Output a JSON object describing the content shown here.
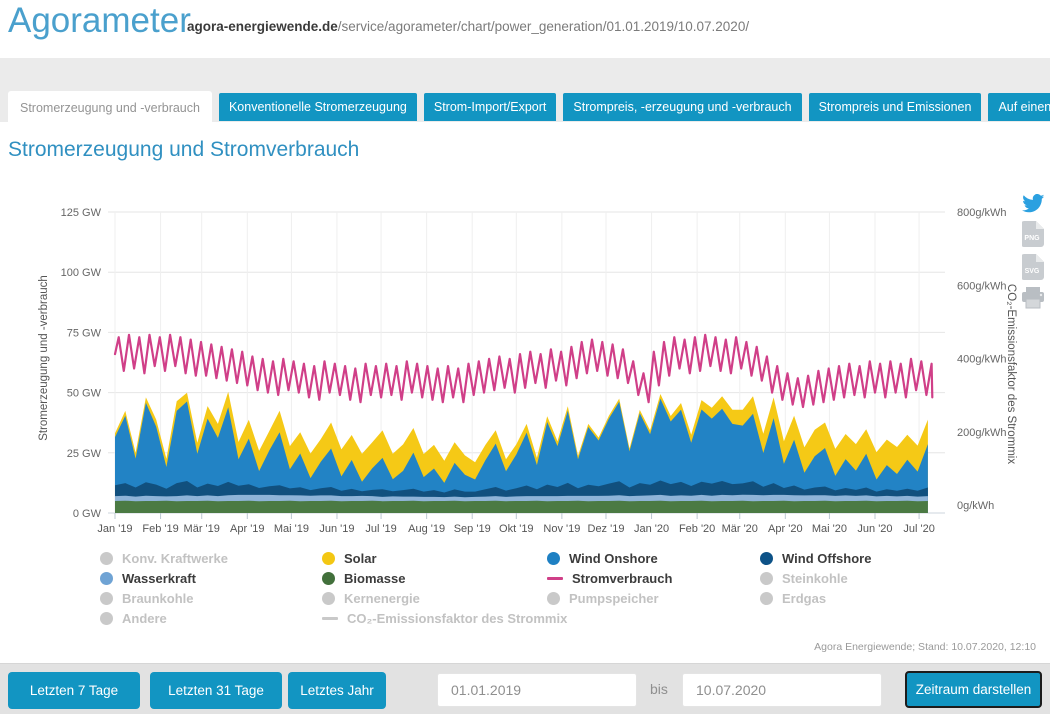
{
  "header": {
    "app_title": "Agorameter",
    "breadcrumb_domain": "agora-energiewende.de",
    "breadcrumb_path": "/service/agorameter/chart/power_generation/01.01.2019/10.07.2020/"
  },
  "tabs": [
    {
      "label": "Stromerzeugung und -verbrauch",
      "active": true
    },
    {
      "label": "Konventionelle Stromerzeugung",
      "active": false
    },
    {
      "label": "Strom-Import/Export",
      "active": false
    },
    {
      "label": "Strompreis, -erzeugung und -verbrauch",
      "active": false
    },
    {
      "label": "Strompreis und Emissionen",
      "active": false
    },
    {
      "label": "Auf einen Blick",
      "active": false
    }
  ],
  "page_title": "Stromerzeugung und Stromverbrauch",
  "share_icons": [
    "twitter-icon",
    "png-download-icon",
    "svg-download-icon",
    "print-icon"
  ],
  "colors": {
    "accent_blue": "#1295c2",
    "heading_blue": "#3090c1",
    "solar": "#f5c916",
    "biomasse": "#4b7a43",
    "wind_onshore": "#2283c5",
    "wind_offshore": "#11507e",
    "wasserkraft": "#8fb4d8",
    "stromverbrauch": "#d03f88",
    "inactive_gray": "#c9c9c9"
  },
  "legend_columns": [
    [
      {
        "label": "Konv. Kraftwerke",
        "swatch": "dot",
        "color": "#c9c9c9",
        "active": false
      },
      {
        "label": "Wasserkraft",
        "swatch": "dot",
        "color": "#6fa3d4",
        "active": true
      },
      {
        "label": "Braunkohle",
        "swatch": "dot",
        "color": "#c9c9c9",
        "active": false
      },
      {
        "label": "Andere",
        "swatch": "dot",
        "color": "#c9c9c9",
        "active": false
      }
    ],
    [
      {
        "label": "Solar",
        "swatch": "dot",
        "color": "#f3c713",
        "active": true
      },
      {
        "label": "Biomasse",
        "swatch": "dot",
        "color": "#42703b",
        "active": true
      },
      {
        "label": "Kernenergie",
        "swatch": "dot",
        "color": "#c9c9c9",
        "active": false
      },
      {
        "label": "CO₂-Emissionsfaktor des Strommix",
        "swatch": "line",
        "color": "#c9c9c9",
        "active": false
      }
    ],
    [
      {
        "label": "Wind Onshore",
        "swatch": "dot",
        "color": "#1e80c3",
        "active": true
      },
      {
        "label": "Stromverbrauch",
        "swatch": "line",
        "color": "#d03f88",
        "active": true
      },
      {
        "label": "Pumpspeicher",
        "swatch": "dot",
        "color": "#c9c9c9",
        "active": false
      }
    ],
    [
      {
        "label": "Wind Offshore",
        "swatch": "dot",
        "color": "#0d5287",
        "active": true
      },
      {
        "label": "Steinkohle",
        "swatch": "dot",
        "color": "#c9c9c9",
        "active": false
      },
      {
        "label": "Erdgas",
        "swatch": "dot",
        "color": "#c9c9c9",
        "active": false
      }
    ]
  ],
  "source_note": "Agora Energiewende; Stand: 10.07.2020, 12:10",
  "bottombar": {
    "range_buttons": [
      "Letzten 7 Tage",
      "Letzten 31 Tage",
      "Letztes Jahr"
    ],
    "date_from": "01.01.2019",
    "separator": "bis",
    "date_to": "10.07.2020",
    "submit_label": "Zeitraum darstellen"
  },
  "chart_data": {
    "type": "area",
    "title": "Stromerzeugung und Stromverbrauch",
    "x_start": "01.01.2019",
    "x_end": "10.07.2020",
    "total_days": 556,
    "sample_interval_days": 7,
    "x_tick_labels": [
      "Jan '19",
      "Feb '19",
      "Mär '19",
      "Apr '19",
      "Mai '19",
      "Jun '19",
      "Jul '19",
      "Aug '19",
      "Sep '19",
      "Okt '19",
      "Nov '19",
      "Dez '19",
      "Jan '20",
      "Feb '20",
      "Mär '20",
      "Apr '20",
      "Mai '20",
      "Jun '20",
      "Jul '20"
    ],
    "x_tick_days": [
      0,
      31,
      59,
      90,
      120,
      151,
      181,
      212,
      243,
      273,
      304,
      334,
      365,
      396,
      425,
      456,
      486,
      517,
      547
    ],
    "y_left": {
      "label": "Stromerzeugung und -verbrauch",
      "unit": "GW",
      "ticks": [
        0,
        25,
        50,
        75,
        100,
        125
      ],
      "max": 130
    },
    "y_right": {
      "label": "CO₂-Emissionsfaktor des Strommix",
      "unit": "g/kWh",
      "ticks": [
        0,
        200,
        400,
        600,
        800
      ],
      "max": 800
    },
    "grid": true,
    "legend_position": "bottom",
    "stacked_series_bottom_to_top": [
      {
        "name": "Biomasse",
        "color": "#4b7a43",
        "weekly_values_gw": [
          5,
          5.1,
          4.9,
          5,
          5,
          5.1,
          4.9,
          5,
          5,
          5.1,
          4.9,
          5,
          5,
          5.1,
          4.9,
          5,
          5,
          5.1,
          4.9,
          5,
          5,
          5.1,
          4.9,
          5,
          5,
          5.1,
          4.9,
          5,
          5,
          5.1,
          4.9,
          5,
          5,
          5.1,
          4.9,
          5,
          5,
          5.1,
          4.9,
          5,
          5,
          5.1,
          4.9,
          5,
          5,
          5.1,
          4.9,
          5,
          5,
          5.1,
          4.9,
          5,
          5,
          5.1,
          4.9,
          5,
          5,
          5.1,
          4.9,
          5,
          5,
          5.1,
          4.9,
          5,
          5,
          5.1,
          4.9,
          5,
          5,
          5.1,
          4.9,
          5,
          5,
          5.1,
          4.9,
          5,
          5,
          5.1,
          4.9,
          5
        ]
      },
      {
        "name": "Wasserkraft",
        "color": "#8fb4d8",
        "weekly_values_gw": [
          2,
          2.1,
          1.9,
          2.2,
          2,
          1.8,
          2.1,
          2.3,
          2,
          2.2,
          2.1,
          2.4,
          2.5,
          2.4,
          2.6,
          2.5,
          2.4,
          2.3,
          2.4,
          2.2,
          2.3,
          2.2,
          2.1,
          2,
          2.1,
          1.9,
          1.8,
          1.9,
          1.8,
          1.7,
          1.8,
          1.7,
          1.6,
          1.7,
          1.6,
          1.7,
          1.8,
          1.9,
          1.8,
          1.9,
          2,
          1.9,
          2.1,
          2,
          2.1,
          2,
          2.2,
          2.1,
          2.2,
          2.3,
          2.1,
          2.2,
          2.3,
          2.4,
          2.2,
          2.3,
          2.2,
          2.4,
          2.3,
          2.5,
          2.4,
          2.5,
          2.6,
          2.4,
          2.5,
          2.4,
          2.5,
          2.3,
          2.4,
          2.3,
          2.2,
          2.3,
          2.1,
          2.2,
          2,
          2.1,
          1.9,
          2,
          1.9,
          2
        ]
      },
      {
        "name": "Wind Offshore",
        "color": "#11507e",
        "weekly_values_gw": [
          4.5,
          5.2,
          3.8,
          5.6,
          4.8,
          3.2,
          5.4,
          6,
          3.6,
          4.9,
          4.2,
          5.5,
          3.8,
          4.4,
          2.9,
          3.6,
          4.1,
          2.8,
          3.4,
          2.3,
          3,
          3.5,
          2.2,
          3,
          1.9,
          2.6,
          3.2,
          2.1,
          2.7,
          3.3,
          2.2,
          2.8,
          1.9,
          3,
          2.4,
          2.2,
          3.1,
          3.8,
          2.6,
          3.4,
          4.4,
          2.9,
          4.8,
          3.8,
          5.4,
          3.2,
          4.6,
          4,
          5,
          5.8,
          3.6,
          5.2,
          4.4,
          6,
          4.9,
          5.6,
          4,
          5.5,
          5,
          5.8,
          4.6,
          4.7,
          5.7,
          3.5,
          4.9,
          2.9,
          4,
          2.4,
          3.2,
          3.6,
          2.3,
          3.1,
          2.5,
          3.3,
          2,
          2.8,
          2.3,
          3,
          2.4,
          3.6
        ]
      },
      {
        "name": "Wind Onshore",
        "color": "#2283c5",
        "weekly_values_gw": [
          20,
          28,
          12,
          33,
          24,
          9,
          30,
          33,
          14,
          27,
          20,
          31,
          11,
          19,
          7,
          15,
          22,
          8,
          14,
          5,
          11,
          16,
          6,
          12,
          4,
          9,
          13,
          5,
          8,
          15,
          6,
          9,
          4,
          11,
          7,
          5,
          12,
          18,
          8,
          14,
          22,
          10,
          26,
          17,
          30,
          12,
          24,
          19,
          27,
          33,
          15,
          29,
          21,
          34,
          26,
          30,
          18,
          30,
          27,
          30,
          25,
          24,
          28,
          14,
          27,
          10,
          19,
          7,
          13,
          16,
          6,
          12,
          8,
          14,
          5,
          10,
          7,
          12,
          8,
          18
        ]
      },
      {
        "name": "Solar",
        "color": "#f5c916",
        "weekly_values_gw": [
          1.6,
          2,
          2.4,
          2.2,
          3,
          3.4,
          4,
          3.6,
          4.6,
          5.2,
          5.8,
          6.4,
          7.2,
          7.8,
          8.4,
          8,
          9,
          9.6,
          8.8,
          10.2,
          9.4,
          10.8,
          11.2,
          10.4,
          11.6,
          10.8,
          11.4,
          10.6,
          11,
          10.2,
          9.6,
          9.8,
          9.2,
          8.6,
          8,
          7.2,
          6.4,
          5.6,
          5,
          4.2,
          3.6,
          3,
          2.4,
          2,
          1.8,
          1.5,
          1.3,
          1.2,
          1.2,
          1.3,
          1.2,
          1.4,
          1.6,
          1.9,
          2.3,
          2.8,
          3.3,
          3.9,
          4.5,
          5.2,
          5.9,
          6.6,
          7.3,
          8,
          8.6,
          9.4,
          10,
          10.6,
          11,
          10.6,
          11.2,
          10.4,
          11,
          10.2,
          11.4,
          10.6,
          11.2,
          10.4,
          10.8,
          10.2
        ]
      }
    ],
    "line_series": {
      "name": "Stromverbrauch",
      "color": "#d03f88",
      "weekly_weekday_peak_gw": [
        73,
        74,
        73,
        74,
        73,
        74,
        73,
        72,
        71,
        70,
        69,
        68,
        67,
        65,
        64,
        63,
        64,
        63,
        62,
        61,
        63,
        62,
        61,
        60,
        62,
        61,
        62,
        61,
        63,
        62,
        61,
        60,
        61,
        60,
        62,
        63,
        64,
        65,
        64,
        66,
        67,
        66,
        68,
        67,
        69,
        71,
        72,
        71,
        70,
        68,
        63,
        58,
        67,
        71,
        73,
        72,
        73,
        74,
        73,
        72,
        73,
        71,
        69,
        65,
        61,
        58,
        56,
        57,
        59,
        60,
        61,
        62,
        61,
        63,
        62,
        63,
        62,
        64,
        63,
        62
      ],
      "weekly_weekend_trough_gw": [
        59,
        60,
        58,
        61,
        59,
        61,
        58,
        57,
        57,
        56,
        55,
        54,
        53,
        51,
        50,
        49,
        51,
        50,
        48,
        47,
        50,
        49,
        47,
        46,
        49,
        48,
        49,
        47,
        50,
        48,
        47,
        46,
        48,
        46,
        49,
        50,
        51,
        52,
        50,
        52,
        54,
        52,
        55,
        53,
        56,
        58,
        59,
        57,
        56,
        54,
        49,
        46,
        53,
        57,
        60,
        58,
        59,
        61,
        59,
        58,
        60,
        57,
        55,
        50,
        47,
        45,
        44,
        45,
        46,
        47,
        48,
        49,
        48,
        50,
        48,
        50,
        48,
        51,
        49,
        48
      ]
    }
  }
}
